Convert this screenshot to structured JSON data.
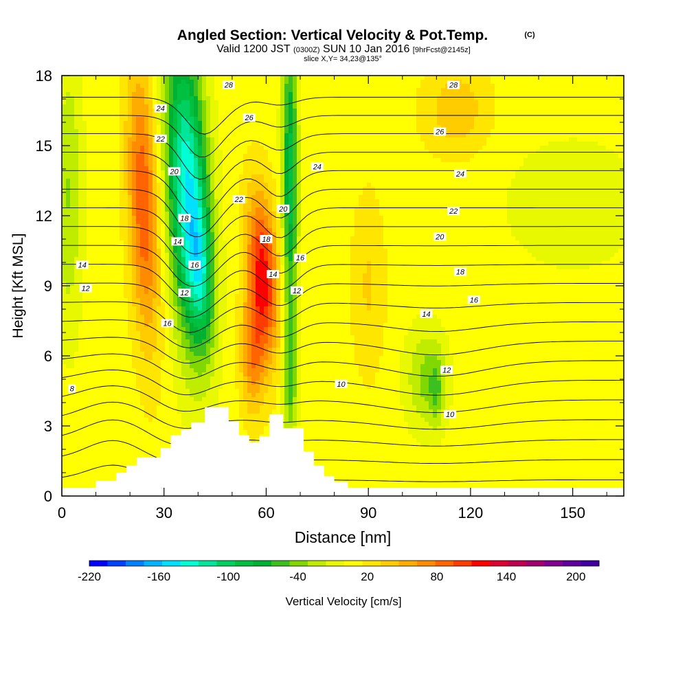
{
  "chart_data": {
    "type": "heatmap",
    "title_main": "Angled Section: Vertical Velocity & Pot.Temp.",
    "title_mark": "(C)",
    "subtitle_parts": [
      "Valid 1200 JST",
      "(0300Z)",
      "SUN 10 Jan 2016",
      "[9hrFcst@2145z]"
    ],
    "slice_text": "slice X,Y= 34,23@135°",
    "xlabel": "Distance [nm]",
    "ylabel": "Height [Kft MSL]",
    "xlim": [
      0,
      165
    ],
    "ylim": [
      0,
      18
    ],
    "x_ticks": [
      "0",
      "30",
      "60",
      "90",
      "120",
      "150"
    ],
    "x_tick_values": [
      0,
      30,
      60,
      90,
      120,
      150
    ],
    "y_ticks": [
      "0",
      "3",
      "6",
      "9",
      "12",
      "15",
      "18"
    ],
    "y_tick_values": [
      0,
      3,
      6,
      9,
      12,
      15,
      18
    ],
    "terrain": {
      "x": [
        0,
        10,
        10,
        16,
        16,
        19,
        19,
        22,
        22,
        29,
        29,
        32,
        32,
        35,
        35,
        38,
        38,
        42,
        42,
        49,
        49,
        52,
        52,
        55,
        55,
        58,
        58,
        61,
        61,
        65,
        65,
        71,
        71,
        74,
        74,
        77,
        77,
        80,
        80,
        84,
        84,
        90,
        90,
        165
      ],
      "height_kft": [
        0.35,
        0.35,
        0.65,
        0.65,
        1.0,
        1.0,
        1.3,
        1.3,
        1.65,
        1.65,
        2.05,
        2.05,
        2.6,
        2.6,
        2.85,
        2.85,
        3.15,
        3.15,
        3.8,
        3.8,
        3.2,
        3.2,
        2.6,
        2.6,
        2.3,
        2.3,
        2.55,
        2.55,
        3.5,
        3.5,
        2.9,
        2.9,
        1.9,
        1.9,
        1.3,
        1.3,
        0.85,
        0.85,
        0.6,
        0.6,
        0.35,
        0.35,
        0.35,
        0.35
      ]
    },
    "velocity_features": [
      {
        "x": 37,
        "z": 13.0,
        "sx": 6.0,
        "sz": 6.5,
        "slope": -0.3,
        "value": -150
      },
      {
        "x": 41,
        "z": 9.5,
        "sx": 3.5,
        "sz": 3.0,
        "slope": -0.3,
        "value": -60
      },
      {
        "x": 67,
        "z": 13.5,
        "sx": 2.3,
        "sz": 7.0,
        "slope": 0.0,
        "value": -95
      },
      {
        "x": 67,
        "z": 5.0,
        "sx": 2.0,
        "sz": 2.5,
        "slope": 0.0,
        "value": -50
      },
      {
        "x": 24,
        "z": 12.5,
        "sx": 4.5,
        "sz": 6.0,
        "slope": -0.25,
        "value": 85
      },
      {
        "x": 59,
        "z": 9.5,
        "sx": 4.5,
        "sz": 3.5,
        "slope": -0.35,
        "value": 110
      },
      {
        "x": 56,
        "z": 6.0,
        "sx": 3.5,
        "sz": 2.5,
        "slope": 0.0,
        "value": 60
      },
      {
        "x": 107,
        "z": 5.0,
        "sx": 6.0,
        "sz": 2.2,
        "slope": 0.0,
        "value": -45
      },
      {
        "x": 110,
        "z": 4.5,
        "sx": 2.0,
        "sz": 1.5,
        "slope": 0.0,
        "value": -30
      },
      {
        "x": 2,
        "z": 13.0,
        "sx": 4.0,
        "sz": 6.0,
        "slope": 0.0,
        "value": -40
      },
      {
        "x": 116,
        "z": 16.5,
        "sx": 10.0,
        "sz": 2.0,
        "slope": 0.0,
        "value": 35
      },
      {
        "x": 90,
        "z": 9.0,
        "sx": 5.0,
        "sz": 4.0,
        "slope": 0.0,
        "value": 25
      },
      {
        "x": 150,
        "z": 12.5,
        "sx": 25.0,
        "sz": 3.5,
        "slope": 0.0,
        "value": -15
      }
    ],
    "velocity_base": 8,
    "theta_levels": [
      8,
      9,
      10,
      11,
      12,
      13,
      14,
      15,
      16,
      17,
      18,
      19,
      20,
      21,
      22,
      23,
      24,
      25,
      26,
      27,
      28
    ],
    "theta_labels": [
      {
        "text": "28",
        "x": 49,
        "z": 17.6
      },
      {
        "text": "28",
        "x": 115,
        "z": 17.6
      },
      {
        "text": "26",
        "x": 55,
        "z": 16.2
      },
      {
        "text": "26",
        "x": 111,
        "z": 15.6
      },
      {
        "text": "24",
        "x": 29,
        "z": 16.6
      },
      {
        "text": "24",
        "x": 75,
        "z": 14.1
      },
      {
        "text": "24",
        "x": 117,
        "z": 13.8
      },
      {
        "text": "22",
        "x": 29,
        "z": 15.3
      },
      {
        "text": "22",
        "x": 52,
        "z": 12.7
      },
      {
        "text": "22",
        "x": 115,
        "z": 12.2
      },
      {
        "text": "20",
        "x": 33,
        "z": 13.9
      },
      {
        "text": "20",
        "x": 65,
        "z": 12.3
      },
      {
        "text": "20",
        "x": 111,
        "z": 11.1
      },
      {
        "text": "18",
        "x": 36,
        "z": 11.9
      },
      {
        "text": "18",
        "x": 60,
        "z": 11.0
      },
      {
        "text": "18",
        "x": 117,
        "z": 9.6
      },
      {
        "text": "16",
        "x": 39,
        "z": 9.9
      },
      {
        "text": "16",
        "x": 70,
        "z": 10.2
      },
      {
        "text": "16",
        "x": 121,
        "z": 8.4
      },
      {
        "text": "16",
        "x": 31,
        "z": 7.4
      },
      {
        "text": "14",
        "x": 6,
        "z": 9.9
      },
      {
        "text": "14",
        "x": 34,
        "z": 10.9
      },
      {
        "text": "14",
        "x": 62,
        "z": 9.5
      },
      {
        "text": "14",
        "x": 107,
        "z": 7.8
      },
      {
        "text": "12",
        "x": 7,
        "z": 8.9
      },
      {
        "text": "12",
        "x": 36,
        "z": 8.7
      },
      {
        "text": "12",
        "x": 69,
        "z": 8.8
      },
      {
        "text": "12",
        "x": 113,
        "z": 5.4
      },
      {
        "text": "10",
        "x": 82,
        "z": 4.8
      },
      {
        "text": "10",
        "x": 114,
        "z": 3.5
      },
      {
        "text": "8",
        "x": 3,
        "z": 4.6
      }
    ],
    "colorbar": {
      "label": "Vertical Velocity [cm/s]",
      "min": -220,
      "max": 220,
      "colors": [
        "#0000ff",
        "#0040ff",
        "#0080ff",
        "#00b4ff",
        "#00e0ff",
        "#00ffd4",
        "#00e69a",
        "#00d060",
        "#00c040",
        "#00b030",
        "#3cc020",
        "#80d800",
        "#c0ec00",
        "#e8f800",
        "#ffff00",
        "#ffe600",
        "#ffcc00",
        "#ffac00",
        "#ff8c00",
        "#ff6400",
        "#ff3c00",
        "#ff0000",
        "#e00030",
        "#c00050",
        "#a00070",
        "#800090",
        "#60009c",
        "#4000a0"
      ],
      "tick_labels": [
        "-220",
        "-160",
        "-100",
        "-40",
        "20",
        "80",
        "140",
        "200"
      ],
      "tick_values": [
        -220,
        -160,
        -100,
        -40,
        20,
        80,
        140,
        200
      ]
    }
  }
}
